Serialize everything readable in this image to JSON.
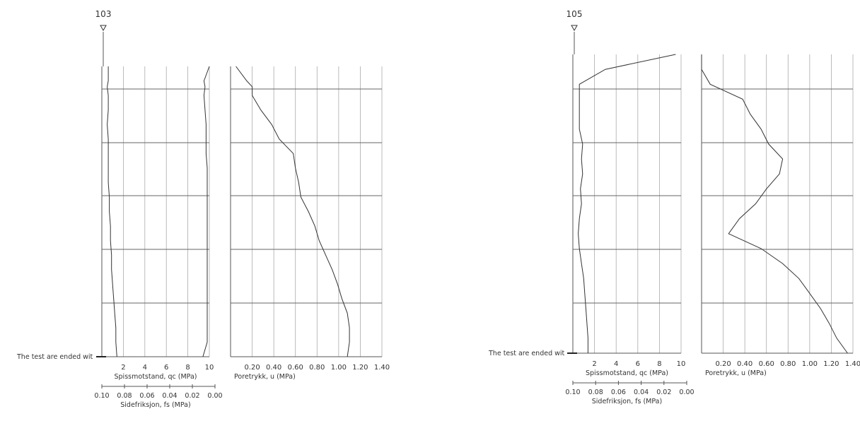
{
  "chart_data": [
    {
      "type": "line",
      "borehole_id": "103",
      "end_note": "The test are ended wit",
      "qc_panel": {
        "xlabel": "Spissmotstand, qc (MPa)",
        "x_ticks": [
          "2",
          "4",
          "6",
          "8",
          "10"
        ],
        "x_range": [
          0,
          10
        ],
        "fs_label": "Sidefriksjon, fs (MPa)",
        "fs_ticks": [
          "0.10",
          "0.08",
          "0.06",
          "0.04",
          "0.02",
          "0.00"
        ],
        "fs_range": [
          0.1,
          0.0
        ],
        "grid": true
      },
      "u_panel": {
        "xlabel": "Poretrykk, u (MPa)",
        "x_ticks": [
          "0.20",
          "0.40",
          "0.60",
          "0.80",
          "1.00",
          "1.20",
          "1.40"
        ],
        "x_range": [
          0,
          1.4
        ],
        "grid": true
      },
      "depth_fraction": [
        0.0,
        0.05,
        0.07,
        0.1,
        0.15,
        0.2,
        0.25,
        0.3,
        0.35,
        0.4,
        0.45,
        0.5,
        0.55,
        0.6,
        0.65,
        0.7,
        0.75,
        0.8,
        0.85,
        0.9,
        0.95,
        1.0
      ],
      "qc_values": [
        0.6,
        0.6,
        0.5,
        0.6,
        0.6,
        0.5,
        0.6,
        0.6,
        0.6,
        0.6,
        0.7,
        0.7,
        0.8,
        0.8,
        0.9,
        0.9,
        1.0,
        1.1,
        1.2,
        1.3,
        1.3,
        1.4
      ],
      "fs_values": [
        0.0,
        0.005,
        0.004,
        0.005,
        0.004,
        0.003,
        0.003,
        0.003,
        0.002,
        0.002,
        0.002,
        0.002,
        0.002,
        0.002,
        0.002,
        0.002,
        0.002,
        0.002,
        0.002,
        0.002,
        0.002,
        0.006
      ],
      "u_values": [
        0.05,
        0.15,
        0.2,
        0.2,
        0.28,
        0.38,
        0.45,
        0.58,
        0.6,
        0.63,
        0.65,
        0.72,
        0.78,
        0.82,
        0.88,
        0.94,
        0.99,
        1.03,
        1.08,
        1.1,
        1.1,
        1.08
      ]
    },
    {
      "type": "line",
      "borehole_id": "105",
      "end_note": "The test are ended wit",
      "qc_panel": {
        "xlabel": "Spissmotstand, qc (MPa)",
        "x_ticks": [
          "2",
          "4",
          "6",
          "8",
          "10"
        ],
        "x_range": [
          0,
          10
        ],
        "fs_label": "Sidefriksjon, fs (MPa)",
        "fs_ticks": [
          "0.10",
          "0.08",
          "0.06",
          "0.04",
          "0.02",
          "0.00"
        ],
        "fs_range": [
          0.1,
          0.0
        ],
        "grid": true
      },
      "u_panel": {
        "xlabel": "Poretrykk, u (MPa)",
        "x_ticks": [
          "0.20",
          "0.40",
          "0.60",
          "0.80",
          "1.00",
          "1.20",
          "1.40"
        ],
        "x_range": [
          0,
          1.4
        ],
        "grid": true
      },
      "depth_fraction": [
        0.0,
        0.05,
        0.1,
        0.15,
        0.2,
        0.25,
        0.3,
        0.35,
        0.4,
        0.45,
        0.5,
        0.55,
        0.6,
        0.65,
        0.7,
        0.75,
        0.8,
        0.85,
        0.9,
        0.95,
        1.0
      ],
      "qc_values": [
        9.5,
        3.0,
        0.6,
        0.6,
        0.6,
        0.6,
        0.9,
        0.8,
        0.9,
        0.7,
        0.8,
        0.6,
        0.5,
        0.6,
        0.8,
        1.0,
        1.1,
        1.2,
        1.3,
        1.4,
        1.4
      ],
      "u_values": [
        0.0,
        0.0,
        0.08,
        0.38,
        0.45,
        0.55,
        0.62,
        0.75,
        0.72,
        0.6,
        0.5,
        0.35,
        0.25,
        0.55,
        0.75,
        0.9,
        1.0,
        1.1,
        1.18,
        1.25,
        1.35
      ]
    }
  ]
}
